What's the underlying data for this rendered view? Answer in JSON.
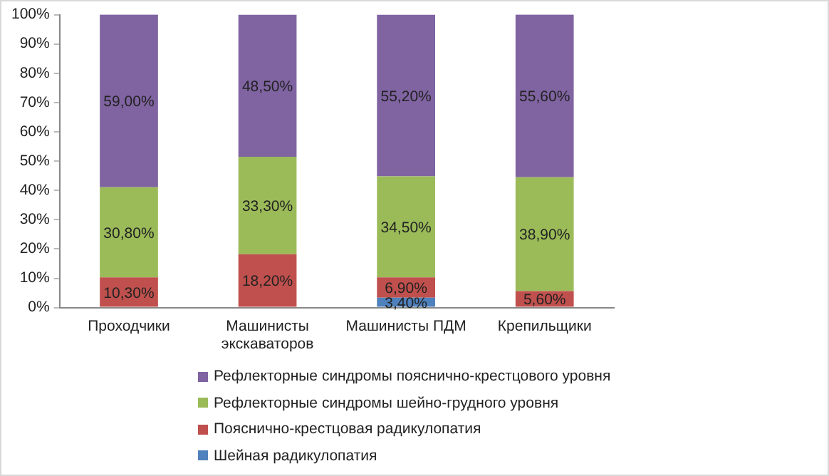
{
  "chart_data": {
    "type": "bar",
    "stacked": true,
    "categories": [
      "Проходчики",
      "Машинисты экскаваторов",
      "Машинисты ПДМ",
      "Крепильщики"
    ],
    "series": [
      {
        "name": "Шейная радикулопатия",
        "color": "#4f81bd",
        "values": [
          null,
          null,
          3.4,
          null
        ],
        "value_labels": [
          null,
          null,
          "3,40%",
          null
        ]
      },
      {
        "name": "Пояснично-крестцовая радикулопатия",
        "color": "#c0504d",
        "values": [
          10.3,
          18.2,
          6.9,
          5.6
        ],
        "value_labels": [
          "10,30%",
          "18,20%",
          "6,90%",
          "5,60%"
        ]
      },
      {
        "name": "Рефлекторные синдромы шейно-грудного уровня",
        "color": "#9bbb59",
        "values": [
          30.8,
          33.3,
          34.5,
          38.9
        ],
        "value_labels": [
          "30,80%",
          "33,30%",
          "34,50%",
          "38,90%"
        ]
      },
      {
        "name": "Рефлекторные синдромы пояснично-крестцового уровня",
        "color": "#8064a2",
        "values": [
          59.0,
          48.5,
          55.2,
          55.6
        ],
        "value_labels": [
          "59,00%",
          "48,50%",
          "55,20%",
          "55,60%"
        ]
      }
    ],
    "ylim": [
      0,
      100
    ],
    "yticks": [
      {
        "value": 0,
        "label": "0%"
      },
      {
        "value": 10,
        "label": "10%"
      },
      {
        "value": 20,
        "label": "20%"
      },
      {
        "value": 30,
        "label": "30%"
      },
      {
        "value": 40,
        "label": "40%"
      },
      {
        "value": 50,
        "label": "50%"
      },
      {
        "value": 60,
        "label": "60%"
      },
      {
        "value": 70,
        "label": "70%"
      },
      {
        "value": 80,
        "label": "80%"
      },
      {
        "value": 90,
        "label": "90%"
      },
      {
        "value": 100,
        "label": "100%"
      }
    ],
    "grid": false,
    "legend": "bottom"
  }
}
